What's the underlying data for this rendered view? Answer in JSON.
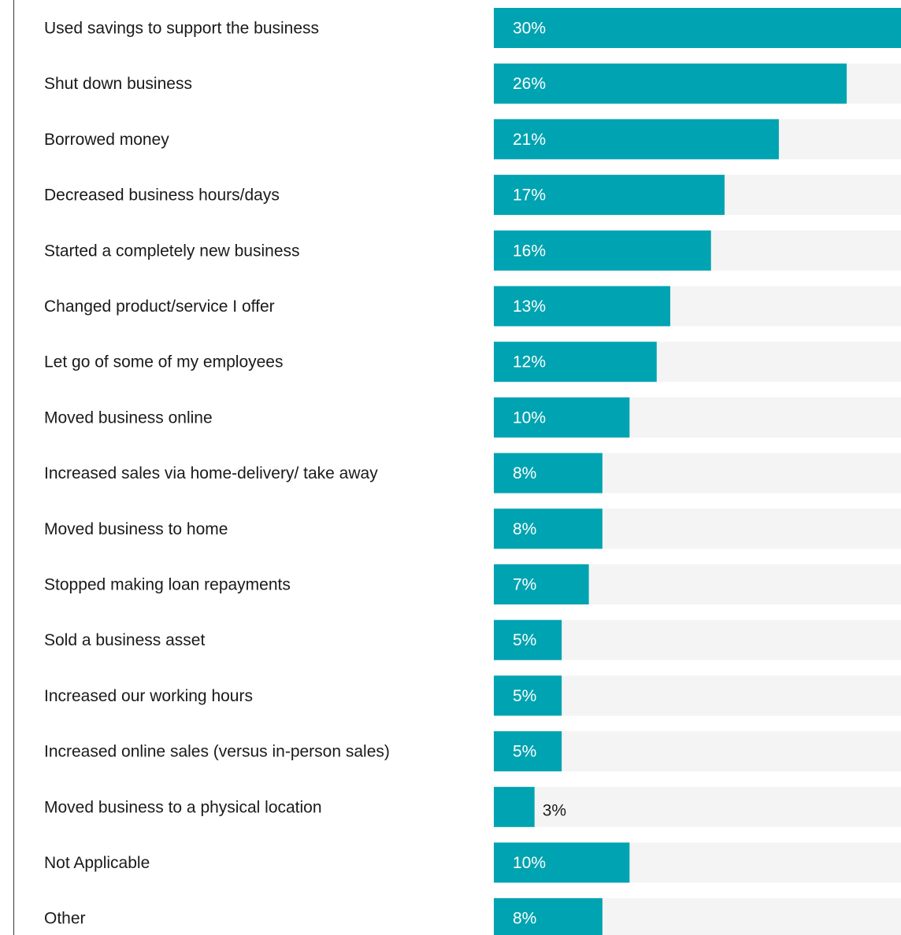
{
  "chart_data": {
    "type": "bar",
    "orientation": "horizontal",
    "categories": [
      "Used savings to support the business",
      "Shut down business",
      "Borrowed money",
      "Decreased business hours/days",
      "Started a completely new business",
      "Changed product/service I offer",
      "Let go of some of my employees",
      "Moved business online",
      "Increased sales via home-delivery/ take away",
      "Moved business to home",
      "Stopped making loan repayments",
      "Sold a business asset",
      "Increased our working hours",
      "Increased online sales (versus in-person sales)",
      "Moved business to a physical location",
      "Not Applicable",
      "Other"
    ],
    "values": [
      30,
      26,
      21,
      17,
      16,
      13,
      12,
      10,
      8,
      8,
      7,
      5,
      5,
      5,
      3,
      10,
      8
    ],
    "value_labels": [
      "30%",
      "26%",
      "21%",
      "17%",
      "16%",
      "13%",
      "12%",
      "10%",
      "8%",
      "8%",
      "7%",
      "5%",
      "5%",
      "5%",
      "3%",
      "10%",
      "8%"
    ],
    "xlim": [
      0,
      30
    ],
    "grid": false,
    "legend": "none",
    "colors": {
      "bar": "#00A3B1",
      "track": "#F4F4F4",
      "label": "#1A1A1A",
      "value_inside": "#FFFFFF",
      "value_outside": "#1A1A1A"
    }
  }
}
